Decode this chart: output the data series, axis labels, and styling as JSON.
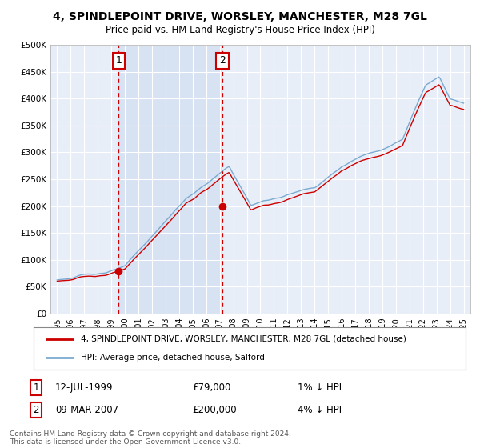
{
  "title": "4, SPINDLEPOINT DRIVE, WORSLEY, MANCHESTER, M28 7GL",
  "subtitle": "Price paid vs. HM Land Registry's House Price Index (HPI)",
  "legend_label_red": "4, SPINDLEPOINT DRIVE, WORSLEY, MANCHESTER, M28 7GL (detached house)",
  "legend_label_blue": "HPI: Average price, detached house, Salford",
  "annotation1_label": "1",
  "annotation1_date": "12-JUL-1999",
  "annotation1_price": "£79,000",
  "annotation1_hpi": "1% ↓ HPI",
  "annotation1_year": 1999.54,
  "annotation1_value": 79000,
  "annotation2_label": "2",
  "annotation2_date": "09-MAR-2007",
  "annotation2_price": "£200,000",
  "annotation2_hpi": "4% ↓ HPI",
  "annotation2_year": 2007.19,
  "annotation2_value": 200000,
  "background_color": "#ffffff",
  "plot_bg_color": "#e8eef8",
  "shade_color": "#d0ddf0",
  "red_color": "#cc0000",
  "blue_color": "#7aaad0",
  "footer": "Contains HM Land Registry data © Crown copyright and database right 2024.\nThis data is licensed under the Open Government Licence v3.0.",
  "ylim": [
    0,
    500000
  ],
  "xlim_start": 1994.5,
  "xlim_end": 2025.5,
  "grid_color": "#ffffff",
  "spine_color": "#aaaaaa"
}
